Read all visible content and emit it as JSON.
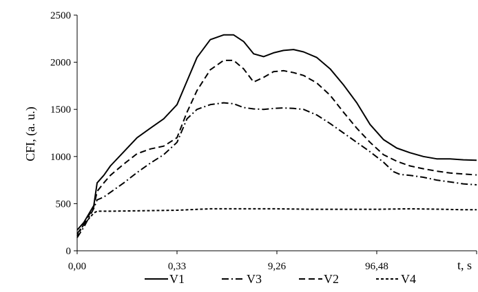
{
  "chart_data": {
    "type": "line",
    "title": "",
    "xlabel": "t, s",
    "ylabel": "CFI, (a. u.)",
    "ylim": [
      0,
      2500
    ],
    "yticks": [
      0,
      500,
      1000,
      1500,
      2000,
      2500
    ],
    "ytick_labels": [
      "0",
      "500",
      "1000",
      "1500",
      "2000",
      "2500"
    ],
    "xtick_labels": [
      "0,00",
      "0,33",
      "9,26",
      "96,48"
    ],
    "grid": false,
    "legend_position": "bottom",
    "series": [
      {
        "name": "V1",
        "color": "#000000",
        "dash": "solid",
        "points": [
          [
            0.0,
            220
          ],
          [
            0.02,
            300
          ],
          [
            0.05,
            480
          ],
          [
            0.06,
            720
          ],
          [
            0.08,
            800
          ],
          [
            0.1,
            900
          ],
          [
            0.14,
            1050
          ],
          [
            0.18,
            1200
          ],
          [
            0.22,
            1300
          ],
          [
            0.26,
            1400
          ],
          [
            0.3,
            1550
          ],
          [
            0.33,
            1800
          ],
          [
            0.36,
            2050
          ],
          [
            0.4,
            2240
          ],
          [
            0.44,
            2290
          ],
          [
            0.47,
            2290
          ],
          [
            0.5,
            2220
          ],
          [
            0.53,
            2090
          ],
          [
            0.56,
            2060
          ],
          [
            0.59,
            2100
          ],
          [
            0.62,
            2125
          ],
          [
            0.65,
            2135
          ],
          [
            0.68,
            2110
          ],
          [
            0.72,
            2050
          ],
          [
            0.76,
            1930
          ],
          [
            0.8,
            1760
          ],
          [
            0.84,
            1570
          ],
          [
            0.88,
            1340
          ],
          [
            0.92,
            1180
          ],
          [
            0.96,
            1090
          ],
          [
            1.0,
            1040
          ],
          [
            1.04,
            1000
          ],
          [
            1.08,
            975
          ],
          [
            1.12,
            975
          ],
          [
            1.16,
            965
          ],
          [
            1.2,
            960
          ]
        ]
      },
      {
        "name": "V3",
        "color": "#000000",
        "dash": "dash-dot",
        "points": [
          [
            0.0,
            140
          ],
          [
            0.02,
            250
          ],
          [
            0.05,
            450
          ],
          [
            0.06,
            540
          ],
          [
            0.08,
            570
          ],
          [
            0.1,
            620
          ],
          [
            0.14,
            720
          ],
          [
            0.18,
            830
          ],
          [
            0.22,
            930
          ],
          [
            0.26,
            1020
          ],
          [
            0.3,
            1150
          ],
          [
            0.33,
            1400
          ],
          [
            0.36,
            1500
          ],
          [
            0.4,
            1550
          ],
          [
            0.44,
            1570
          ],
          [
            0.47,
            1560
          ],
          [
            0.5,
            1520
          ],
          [
            0.53,
            1505
          ],
          [
            0.56,
            1500
          ],
          [
            0.59,
            1510
          ],
          [
            0.62,
            1515
          ],
          [
            0.65,
            1510
          ],
          [
            0.68,
            1500
          ],
          [
            0.72,
            1440
          ],
          [
            0.76,
            1350
          ],
          [
            0.8,
            1250
          ],
          [
            0.84,
            1150
          ],
          [
            0.88,
            1050
          ],
          [
            0.92,
            940
          ],
          [
            0.95,
            840
          ],
          [
            0.97,
            810
          ],
          [
            1.0,
            800
          ],
          [
            1.04,
            780
          ],
          [
            1.08,
            750
          ],
          [
            1.12,
            730
          ],
          [
            1.16,
            710
          ],
          [
            1.2,
            700
          ]
        ]
      },
      {
        "name": "V2",
        "color": "#000000",
        "dash": "dashed",
        "points": [
          [
            0.0,
            180
          ],
          [
            0.02,
            280
          ],
          [
            0.05,
            470
          ],
          [
            0.06,
            630
          ],
          [
            0.08,
            720
          ],
          [
            0.1,
            800
          ],
          [
            0.14,
            920
          ],
          [
            0.18,
            1030
          ],
          [
            0.22,
            1080
          ],
          [
            0.26,
            1110
          ],
          [
            0.3,
            1200
          ],
          [
            0.33,
            1470
          ],
          [
            0.36,
            1700
          ],
          [
            0.4,
            1920
          ],
          [
            0.44,
            2020
          ],
          [
            0.47,
            2020
          ],
          [
            0.5,
            1930
          ],
          [
            0.53,
            1790
          ],
          [
            0.56,
            1840
          ],
          [
            0.59,
            1900
          ],
          [
            0.62,
            1910
          ],
          [
            0.65,
            1890
          ],
          [
            0.68,
            1860
          ],
          [
            0.72,
            1780
          ],
          [
            0.76,
            1650
          ],
          [
            0.8,
            1470
          ],
          [
            0.84,
            1300
          ],
          [
            0.88,
            1150
          ],
          [
            0.92,
            1020
          ],
          [
            0.96,
            950
          ],
          [
            1.0,
            900
          ],
          [
            1.04,
            870
          ],
          [
            1.08,
            845
          ],
          [
            1.12,
            825
          ],
          [
            1.16,
            815
          ],
          [
            1.2,
            805
          ]
        ]
      },
      {
        "name": "V4",
        "color": "#000000",
        "dash": "short-dash",
        "points": [
          [
            0.0,
            160
          ],
          [
            0.02,
            280
          ],
          [
            0.05,
            400
          ],
          [
            0.06,
            420
          ],
          [
            0.1,
            420
          ],
          [
            0.2,
            425
          ],
          [
            0.3,
            430
          ],
          [
            0.4,
            445
          ],
          [
            0.5,
            445
          ],
          [
            0.6,
            445
          ],
          [
            0.7,
            440
          ],
          [
            0.8,
            440
          ],
          [
            0.9,
            440
          ],
          [
            1.0,
            445
          ],
          [
            1.1,
            440
          ],
          [
            1.16,
            435
          ],
          [
            1.2,
            435
          ]
        ]
      }
    ]
  }
}
